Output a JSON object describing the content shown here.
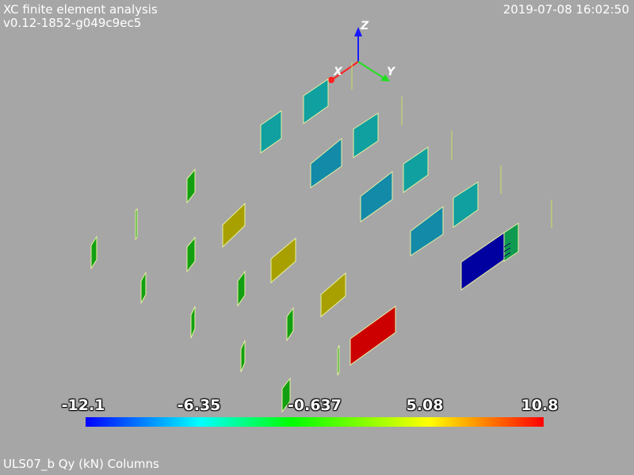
{
  "header": {
    "app_title": "XC finite element analysis",
    "version": "v0.12-1852-g049c9ec5",
    "timestamp": "2019-07-08 16:02:50"
  },
  "axes": {
    "z_label": "Z",
    "x_label": "X",
    "y_label": "Y",
    "colors": {
      "z": "#1818ff",
      "x": "#ff2020",
      "y": "#20e020"
    }
  },
  "scalar_bar": {
    "min": -12.1,
    "max": 10.8,
    "tick_labels": [
      "-12.1",
      "-6.35",
      "-0.637",
      "5.08",
      "10.8"
    ]
  },
  "caption": "ULS07_b Qy (kN) Columns"
}
